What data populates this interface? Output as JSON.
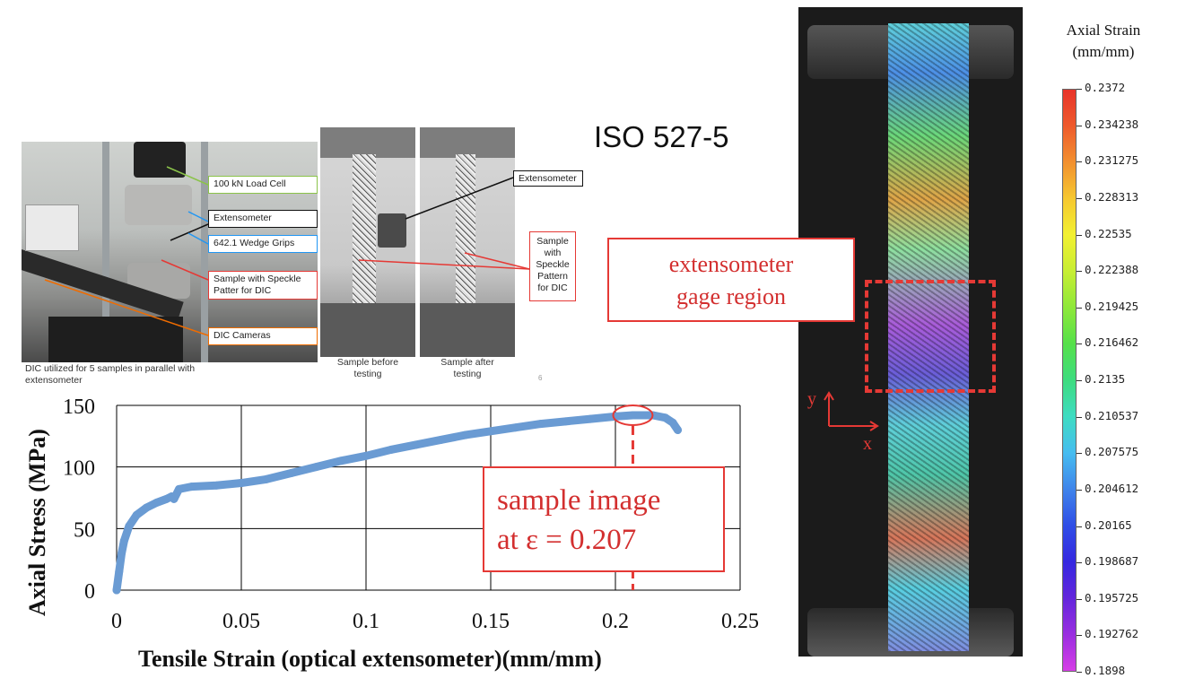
{
  "iso_title": "ISO 527-5",
  "setup_photo": {
    "callouts": {
      "load_cell": "100 kN Load Cell",
      "extensometer": "Extensometer",
      "wedge_grips": "642.1 Wedge Grips",
      "speckle": "Sample with Speckle Patter for DIC",
      "dic_cameras": "DIC Cameras"
    },
    "caption": "DIC utilized for 5 samples in parallel with extensometer"
  },
  "sample_photos": {
    "before_caption": "Sample before testing",
    "after_caption": "Sample after testing",
    "extensometer_label": "Extensometer",
    "speckle_label": "Sample with Speckle Pattern for DIC",
    "page_number": "6"
  },
  "dic_image": {
    "gage_label": "extensometer gage region",
    "axis_y": "y",
    "axis_x": "x"
  },
  "colorbar": {
    "title": "Axial Strain (mm/mm)",
    "ticks": [
      "0.2372",
      "0.234238",
      "0.231275",
      "0.228313",
      "0.22535",
      "0.222388",
      "0.219425",
      "0.216462",
      "0.2135",
      "0.210537",
      "0.207575",
      "0.204612",
      "0.20165",
      "0.198687",
      "0.195725",
      "0.192762",
      "0.1898"
    ],
    "colors": [
      "#e8332a",
      "#ee5a2c",
      "#f2902f",
      "#f6c830",
      "#f2f031",
      "#c7ee33",
      "#8ee83a",
      "#55e04a",
      "#3ddc7f",
      "#3edcc2",
      "#46bdf0",
      "#3f84ea",
      "#2f4ee6",
      "#3528e0",
      "#6326dc",
      "#9a2ee0",
      "#d63ee6"
    ]
  },
  "chart_data": {
    "type": "scatter",
    "xlabel": "Tensile Strain (optical extensometer)(mm/mm)",
    "ylabel": "Axial Stress (MPa)",
    "xlim": [
      0,
      0.25
    ],
    "ylim": [
      0,
      150
    ],
    "xticks": [
      "0",
      "0.05",
      "0.1",
      "0.15",
      "0.2",
      "0.25"
    ],
    "yticks": [
      "0",
      "50",
      "100",
      "150"
    ],
    "grid": true,
    "series": [
      {
        "color": "#6a9bd3",
        "x": [
          0,
          0.001,
          0.002,
          0.003,
          0.005,
          0.008,
          0.012,
          0.016,
          0.02,
          0.022,
          0.023,
          0.025,
          0.03,
          0.04,
          0.05,
          0.06,
          0.07,
          0.08,
          0.09,
          0.1,
          0.11,
          0.12,
          0.13,
          0.14,
          0.15,
          0.16,
          0.17,
          0.18,
          0.19,
          0.2,
          0.207,
          0.215,
          0.22,
          0.223,
          0.225
        ],
        "y": [
          0,
          15,
          30,
          40,
          52,
          61,
          67,
          71,
          74,
          76,
          74,
          82,
          84,
          85,
          87,
          90,
          95,
          100,
          105,
          109,
          114,
          118,
          122,
          126,
          129,
          132,
          135,
          137,
          139,
          141,
          142,
          142,
          140,
          136,
          130
        ]
      }
    ],
    "annotation": {
      "line1": "sample image",
      "line2": "at ε = 0.207",
      "x": 0.207,
      "y": 142
    }
  }
}
